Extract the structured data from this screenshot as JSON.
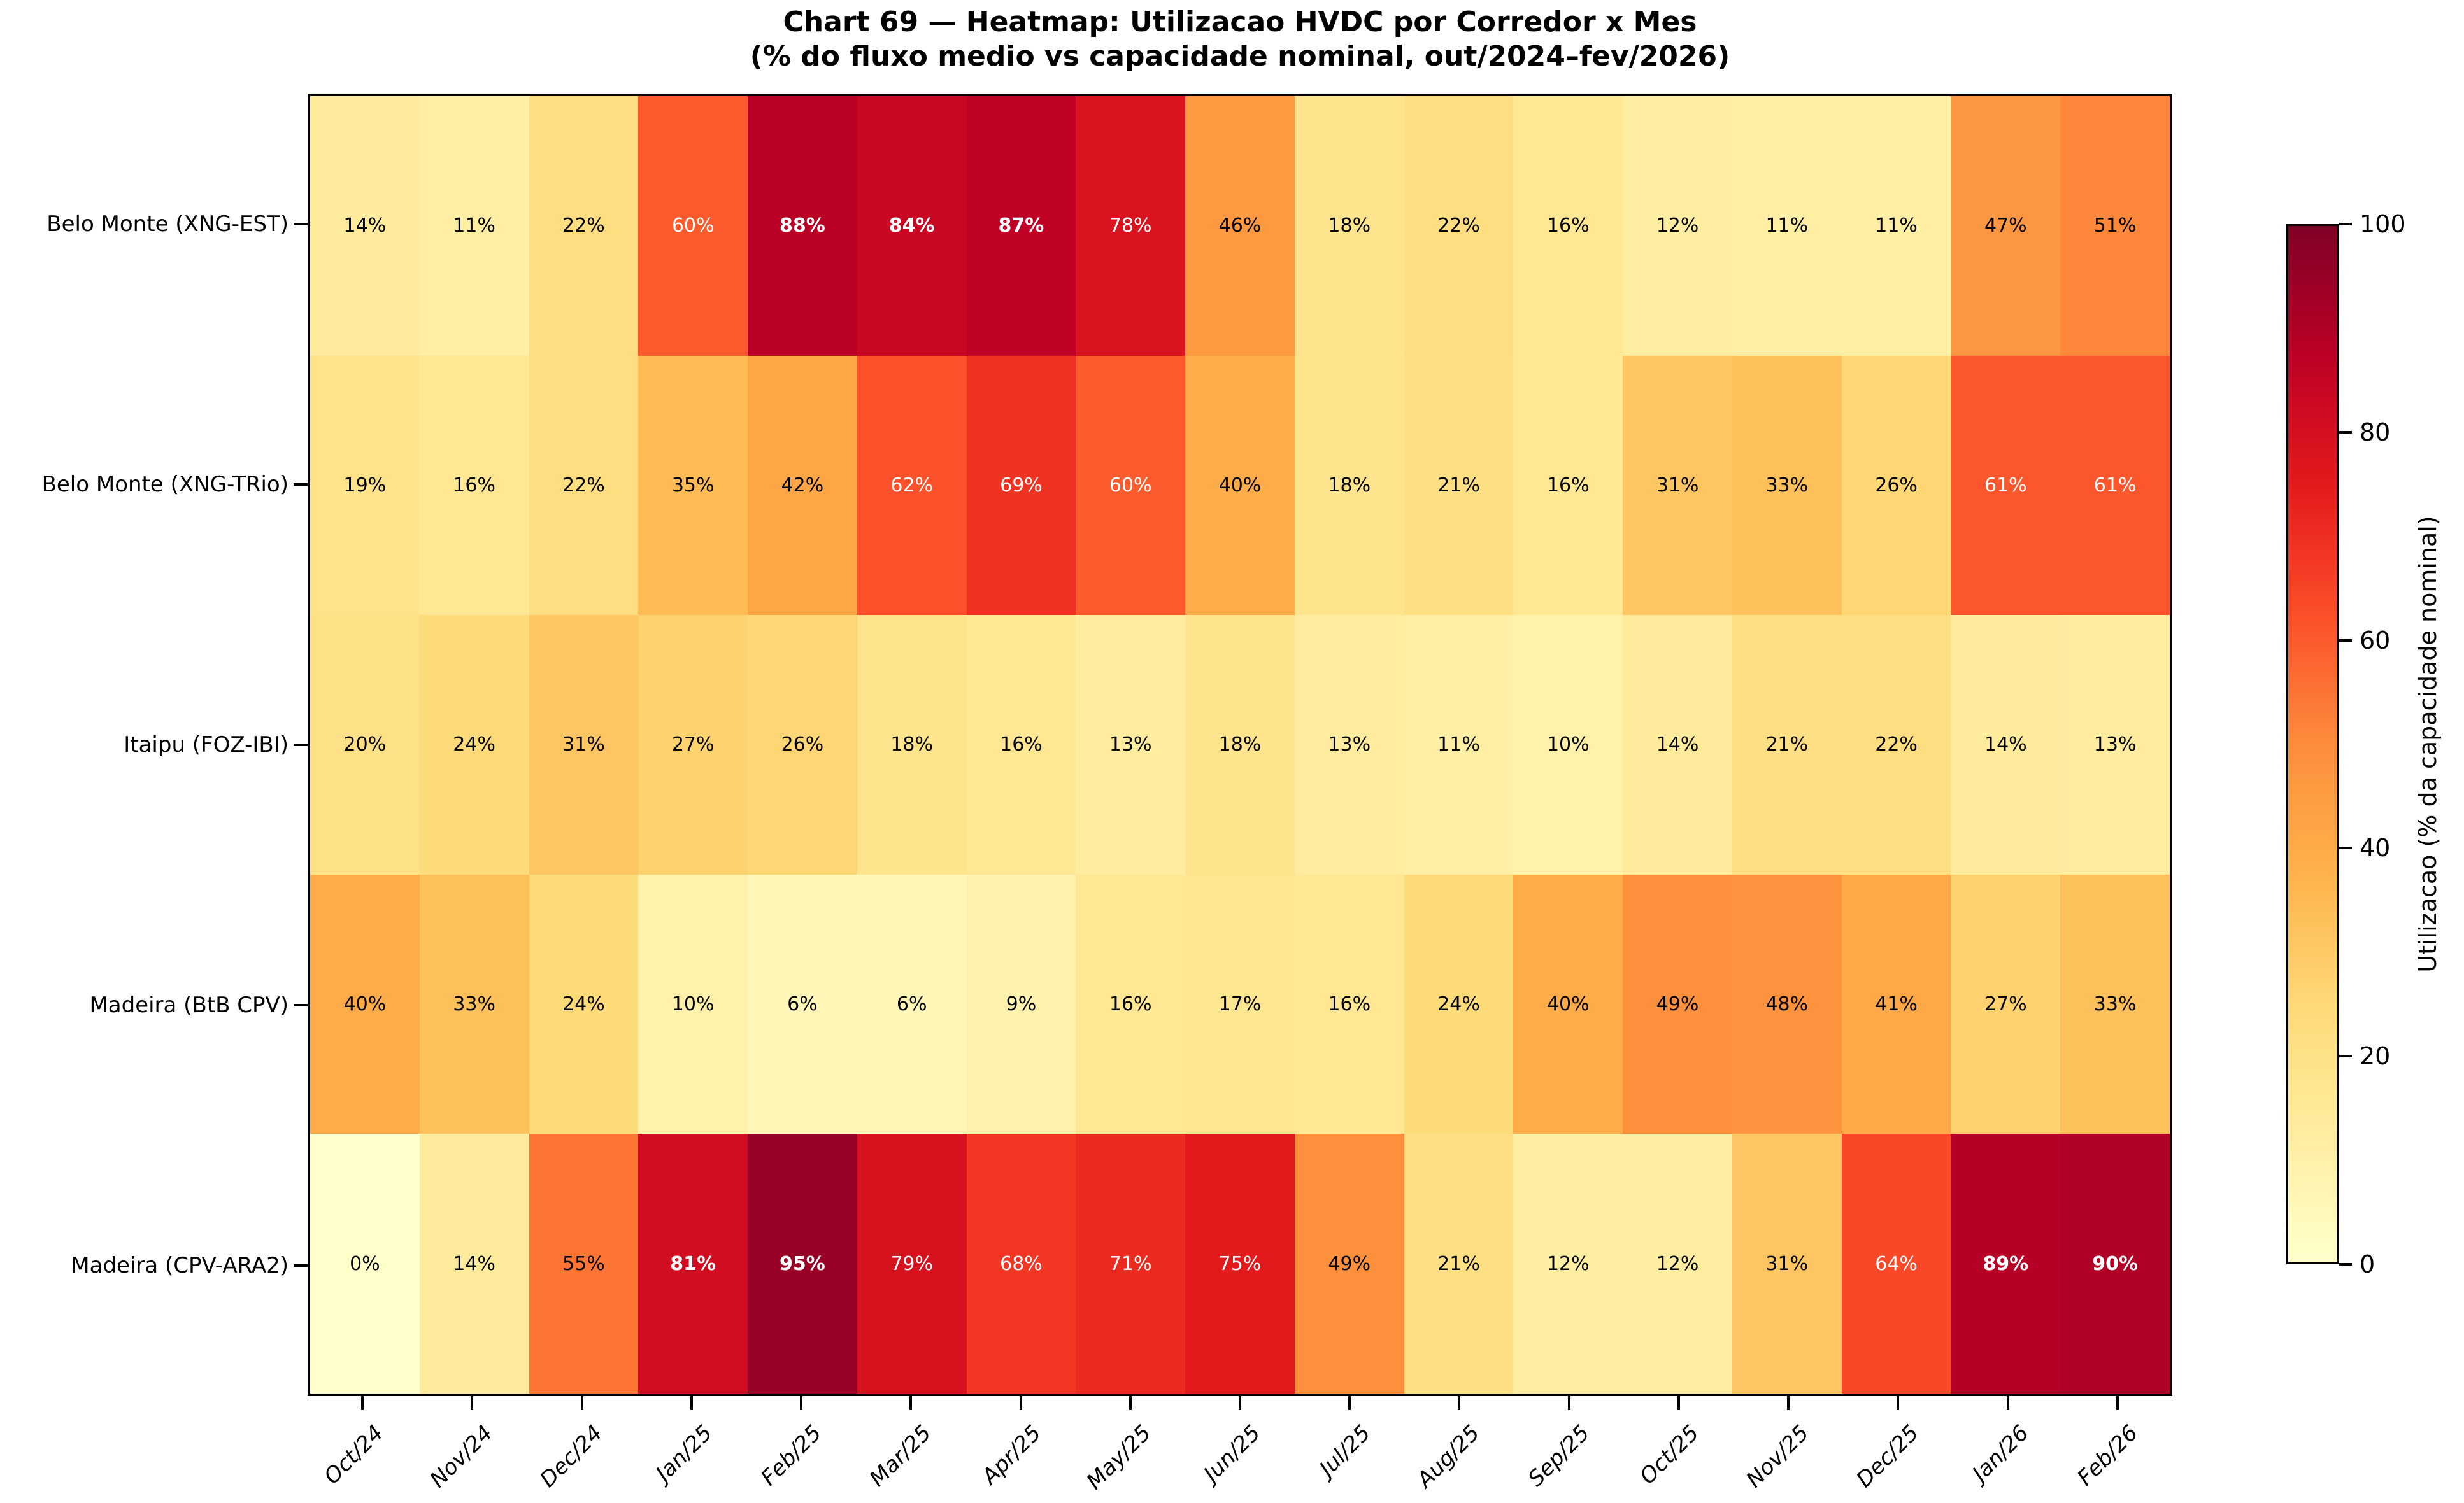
{
  "figure": {
    "title_line1": "Chart 69 — Heatmap: Utilizacao HVDC por Corredor x Mes",
    "title_line2": "(% do fluxo medio vs capacidade nominal, out/2024–fev/2026)"
  },
  "chart_data": {
    "type": "heatmap",
    "title": "Chart 69 — Heatmap: Utilizacao HVDC por Corredor x Mes",
    "subtitle": "(% do fluxo medio vs capacidade nominal, out/2024–fev/2026)",
    "x_categories": [
      "Oct/24",
      "Nov/24",
      "Dec/24",
      "Jan/25",
      "Feb/25",
      "Mar/25",
      "Apr/25",
      "May/25",
      "Jun/25",
      "Jul/25",
      "Aug/25",
      "Sep/25",
      "Oct/25",
      "Nov/25",
      "Dec/25",
      "Jan/26",
      "Feb/26"
    ],
    "y_categories": [
      "Belo Monte (XNG-EST)",
      "Belo Monte (XNG-TRio)",
      "Itaipu (FOZ-IBI)",
      "Madeira (BtB CPV)",
      "Madeira (CPV-ARA2)"
    ],
    "values_pct": [
      [
        14,
        11,
        22,
        60,
        88,
        84,
        87,
        78,
        46,
        18,
        22,
        16,
        12,
        11,
        11,
        47,
        51
      ],
      [
        19,
        16,
        22,
        35,
        42,
        62,
        69,
        60,
        40,
        18,
        21,
        16,
        31,
        33,
        26,
        61,
        61
      ],
      [
        20,
        24,
        31,
        27,
        26,
        18,
        16,
        13,
        18,
        13,
        11,
        10,
        14,
        21,
        22,
        14,
        13
      ],
      [
        40,
        33,
        24,
        10,
        6,
        6,
        9,
        16,
        17,
        16,
        24,
        40,
        49,
        48,
        41,
        27,
        33
      ],
      [
        0,
        14,
        55,
        81,
        95,
        79,
        68,
        71,
        75,
        49,
        21,
        12,
        12,
        31,
        64,
        89,
        90
      ]
    ],
    "cell_label_suffix": "%",
    "colorbar": {
      "label": "Utilizacao (% da capacidade nominal)",
      "ticks": [
        0,
        20,
        40,
        60,
        80,
        100
      ],
      "vmin": 0,
      "vmax": 100
    },
    "colormap": {
      "name": "YlOrRd",
      "stops": [
        "#ffffcc",
        "#ffeda0",
        "#fed976",
        "#feb24c",
        "#fd8d3c",
        "#fc4e2a",
        "#e31a1c",
        "#bd0026",
        "#800026"
      ]
    },
    "annotation_style": {
      "white_text_min_value": 60,
      "bold_text_min_value": 80,
      "dark_text_color": "#000000",
      "light_text_color": "#ffffff"
    },
    "axis_ranges": {
      "x_count": 17,
      "y_count": 5
    },
    "grid": false,
    "legend_position": "right-colorbar"
  }
}
